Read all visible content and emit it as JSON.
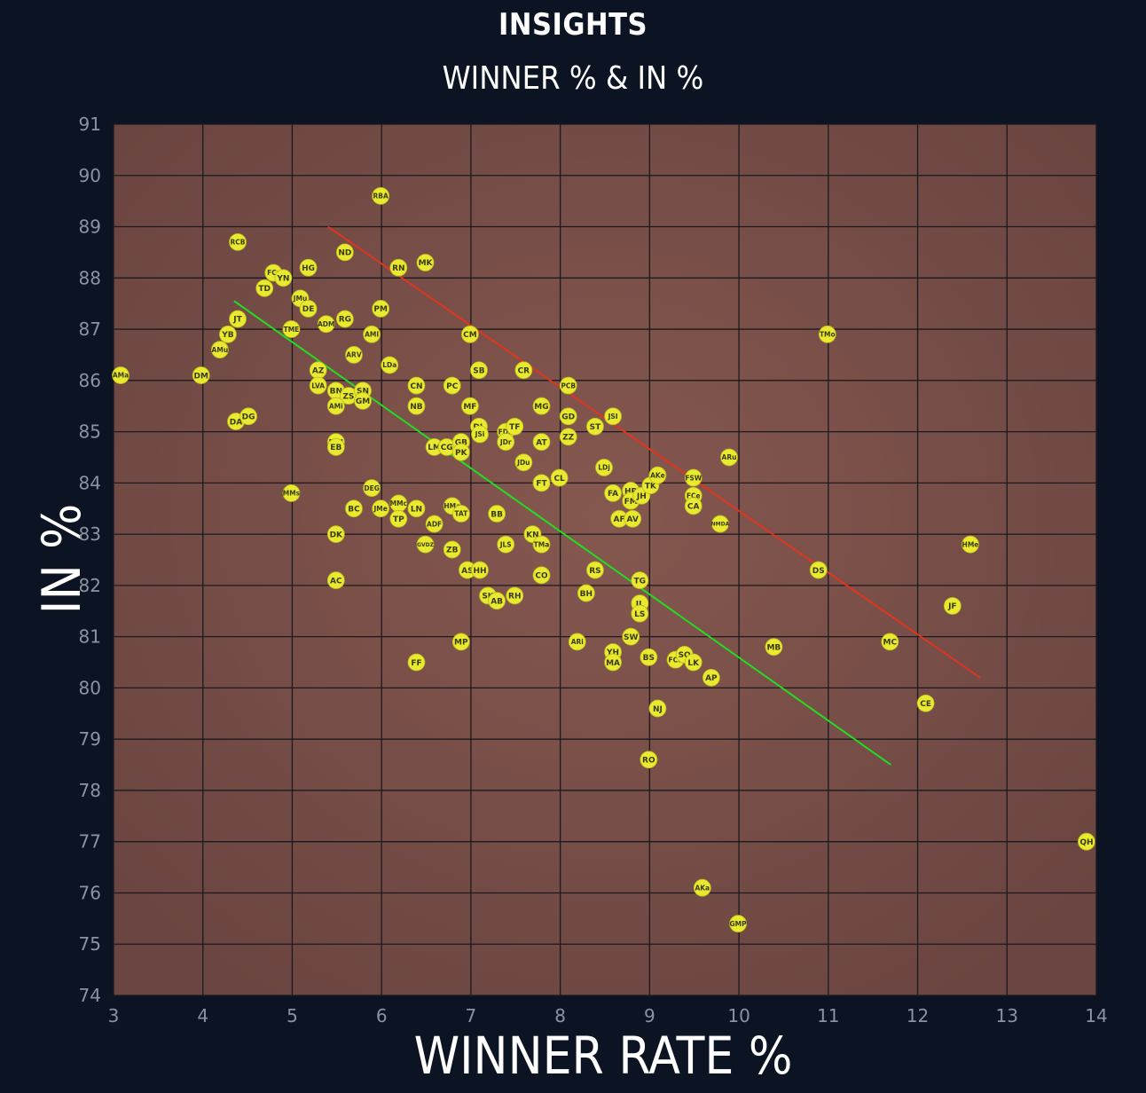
{
  "chart_data": {
    "type": "scatter",
    "title": "INSIGHTS",
    "subtitle": "WINNER % & IN %",
    "xlabel": "WINNER RATE %",
    "ylabel": "IN %",
    "xlim": [
      3,
      14
    ],
    "ylim": [
      74,
      91
    ],
    "xticks": [
      "3",
      "4",
      "5",
      "6",
      "7",
      "8",
      "9",
      "10",
      "11",
      "12",
      "13",
      "14"
    ],
    "yticks": [
      "74",
      "75",
      "76",
      "77",
      "78",
      "79",
      "80",
      "81",
      "82",
      "83",
      "84",
      "85",
      "86",
      "87",
      "88",
      "89",
      "90",
      "91"
    ],
    "grid": true,
    "colors": {
      "background": "#0c1424",
      "plot_area": "#7a4e4c",
      "grid": "#1a1a1f",
      "marker": "#e9ea2f",
      "marker_text": "#3a3a10",
      "red_line": "#e0341f",
      "green_line": "#22dd22",
      "text": "#ffffff",
      "tick_text": "#8c93a0"
    },
    "lines": [
      {
        "color": "red",
        "x": [
          5.4,
          12.7
        ],
        "y": [
          89.0,
          80.2
        ]
      },
      {
        "color": "green",
        "x": [
          4.35,
          11.7
        ],
        "y": [
          87.55,
          78.5
        ]
      }
    ],
    "points": [
      {
        "label": "AMa",
        "x": 3.08,
        "y": 86.1
      },
      {
        "label": "DM",
        "x": 3.98,
        "y": 86.1
      },
      {
        "label": "RCB",
        "x": 4.39,
        "y": 88.7
      },
      {
        "label": "JT",
        "x": 4.39,
        "y": 87.2
      },
      {
        "label": "YB",
        "x": 4.28,
        "y": 86.9
      },
      {
        "label": "AMu",
        "x": 4.19,
        "y": 86.6
      },
      {
        "label": "DA",
        "x": 4.37,
        "y": 85.2
      },
      {
        "label": "DG",
        "x": 4.51,
        "y": 85.3
      },
      {
        "label": "TD",
        "x": 4.69,
        "y": 87.8
      },
      {
        "label": "FCr",
        "x": 4.79,
        "y": 88.1
      },
      {
        "label": "YN",
        "x": 4.9,
        "y": 88.0
      },
      {
        "label": "HG",
        "x": 5.18,
        "y": 88.2
      },
      {
        "label": "JMu",
        "x": 5.09,
        "y": 87.6
      },
      {
        "label": "DE",
        "x": 5.18,
        "y": 87.4
      },
      {
        "label": "TME",
        "x": 4.99,
        "y": 87.0
      },
      {
        "label": "MMs",
        "x": 4.99,
        "y": 83.8
      },
      {
        "label": "ADM",
        "x": 5.38,
        "y": 87.1
      },
      {
        "label": "RG",
        "x": 5.59,
        "y": 87.2
      },
      {
        "label": "ND",
        "x": 5.59,
        "y": 88.5
      },
      {
        "label": "AMI",
        "x": 5.89,
        "y": 86.9
      },
      {
        "label": "PM",
        "x": 5.99,
        "y": 87.4
      },
      {
        "label": "RBA",
        "x": 5.99,
        "y": 89.6
      },
      {
        "label": "ARV",
        "x": 5.69,
        "y": 86.5
      },
      {
        "label": "AZ",
        "x": 5.29,
        "y": 86.2
      },
      {
        "label": "LVA",
        "x": 5.29,
        "y": 85.9
      },
      {
        "label": "BN",
        "x": 5.49,
        "y": 85.8
      },
      {
        "label": "ZS",
        "x": 5.63,
        "y": 85.7
      },
      {
        "label": "SN",
        "x": 5.79,
        "y": 85.8
      },
      {
        "label": "GM",
        "x": 5.79,
        "y": 85.6
      },
      {
        "label": "AMi",
        "x": 5.49,
        "y": 85.5
      },
      {
        "label": "LDa",
        "x": 6.09,
        "y": 86.3
      },
      {
        "label": "MN",
        "x": 5.49,
        "y": 84.8
      },
      {
        "label": "EB",
        "x": 5.49,
        "y": 84.7
      },
      {
        "label": "DEG",
        "x": 5.89,
        "y": 83.9
      },
      {
        "label": "BC",
        "x": 5.69,
        "y": 83.5
      },
      {
        "label": "JMe",
        "x": 5.99,
        "y": 83.5
      },
      {
        "label": "MMc",
        "x": 6.19,
        "y": 83.6
      },
      {
        "label": "LN",
        "x": 6.39,
        "y": 83.5
      },
      {
        "label": "TP",
        "x": 6.19,
        "y": 83.3
      },
      {
        "label": "DK",
        "x": 5.49,
        "y": 83.0
      },
      {
        "label": "AC",
        "x": 5.49,
        "y": 82.1
      },
      {
        "label": "RN",
        "x": 6.19,
        "y": 88.2
      },
      {
        "label": "MK",
        "x": 6.49,
        "y": 88.3
      },
      {
        "label": "CN",
        "x": 6.39,
        "y": 85.9
      },
      {
        "label": "NB",
        "x": 6.39,
        "y": 85.5
      },
      {
        "label": "PC",
        "x": 6.79,
        "y": 85.9
      },
      {
        "label": "MF",
        "x": 6.99,
        "y": 85.5
      },
      {
        "label": "CM",
        "x": 6.99,
        "y": 86.9
      },
      {
        "label": "SB",
        "x": 7.09,
        "y": 86.2
      },
      {
        "label": "LM",
        "x": 6.59,
        "y": 84.7
      },
      {
        "label": "CG",
        "x": 6.73,
        "y": 84.7
      },
      {
        "label": "GB",
        "x": 6.89,
        "y": 84.8
      },
      {
        "label": "PK",
        "x": 6.89,
        "y": 84.6
      },
      {
        "label": "DL",
        "x": 7.09,
        "y": 85.1
      },
      {
        "label": "JSi",
        "x": 7.1,
        "y": 84.95
      },
      {
        "label": "HMa",
        "x": 6.79,
        "y": 83.55
      },
      {
        "label": "TAT",
        "x": 6.89,
        "y": 83.4
      },
      {
        "label": "ADF",
        "x": 6.59,
        "y": 83.2
      },
      {
        "label": "BB",
        "x": 7.29,
        "y": 83.4
      },
      {
        "label": "GVDZ",
        "x": 6.49,
        "y": 82.8
      },
      {
        "label": "ZB",
        "x": 6.79,
        "y": 82.7
      },
      {
        "label": "AS",
        "x": 6.96,
        "y": 82.3
      },
      {
        "label": "HH",
        "x": 7.1,
        "y": 82.3
      },
      {
        "label": "JLS",
        "x": 7.39,
        "y": 82.8
      },
      {
        "label": "SK",
        "x": 7.19,
        "y": 81.8
      },
      {
        "label": "AB",
        "x": 7.29,
        "y": 81.7
      },
      {
        "label": "RH",
        "x": 7.49,
        "y": 81.8
      },
      {
        "label": "MP",
        "x": 6.89,
        "y": 80.9
      },
      {
        "label": "FF",
        "x": 6.39,
        "y": 80.5
      },
      {
        "label": "CR",
        "x": 7.59,
        "y": 86.2
      },
      {
        "label": "FDA",
        "x": 7.39,
        "y": 85.0
      },
      {
        "label": "TF",
        "x": 7.49,
        "y": 85.1
      },
      {
        "label": "JDr",
        "x": 7.39,
        "y": 84.8
      },
      {
        "label": "JDu",
        "x": 7.59,
        "y": 84.4
      },
      {
        "label": "MG",
        "x": 7.79,
        "y": 85.5
      },
      {
        "label": "AT",
        "x": 7.79,
        "y": 84.8
      },
      {
        "label": "FT",
        "x": 7.79,
        "y": 84.0
      },
      {
        "label": "CL",
        "x": 7.99,
        "y": 84.1
      },
      {
        "label": "KN",
        "x": 7.69,
        "y": 83.0
      },
      {
        "label": "TMa",
        "x": 7.79,
        "y": 82.8
      },
      {
        "label": "CO",
        "x": 7.79,
        "y": 82.2
      },
      {
        "label": "PCB",
        "x": 8.09,
        "y": 85.9
      },
      {
        "label": "GD",
        "x": 8.09,
        "y": 85.3
      },
      {
        "label": "ZZ",
        "x": 8.09,
        "y": 84.9
      },
      {
        "label": "ST",
        "x": 8.39,
        "y": 85.1
      },
      {
        "label": "JSI",
        "x": 8.59,
        "y": 85.3
      },
      {
        "label": "LDj",
        "x": 8.49,
        "y": 84.3
      },
      {
        "label": "FA",
        "x": 8.59,
        "y": 83.8
      },
      {
        "label": "HR",
        "x": 8.79,
        "y": 83.85
      },
      {
        "label": "FM",
        "x": 8.79,
        "y": 83.65
      },
      {
        "label": "JH",
        "x": 8.91,
        "y": 83.75
      },
      {
        "label": "TK",
        "x": 9.01,
        "y": 83.95
      },
      {
        "label": "AKe",
        "x": 9.09,
        "y": 84.15
      },
      {
        "label": "AF",
        "x": 8.66,
        "y": 83.3
      },
      {
        "label": "AV",
        "x": 8.81,
        "y": 83.3
      },
      {
        "label": "RS",
        "x": 8.39,
        "y": 82.3
      },
      {
        "label": "BH",
        "x": 8.29,
        "y": 81.85
      },
      {
        "label": "TG",
        "x": 8.89,
        "y": 82.1
      },
      {
        "label": "JL",
        "x": 8.89,
        "y": 81.65
      },
      {
        "label": "LS",
        "x": 8.89,
        "y": 81.45
      },
      {
        "label": "ARi",
        "x": 8.19,
        "y": 80.9
      },
      {
        "label": "SW",
        "x": 8.79,
        "y": 81.0
      },
      {
        "label": "YH",
        "x": 8.59,
        "y": 80.7
      },
      {
        "label": "MA",
        "x": 8.59,
        "y": 80.5
      },
      {
        "label": "BS",
        "x": 8.99,
        "y": 80.6
      },
      {
        "label": "FCS",
        "x": 9.29,
        "y": 80.55
      },
      {
        "label": "SO",
        "x": 9.39,
        "y": 80.65
      },
      {
        "label": "LK",
        "x": 9.49,
        "y": 80.5
      },
      {
        "label": "AP",
        "x": 9.69,
        "y": 80.2
      },
      {
        "label": "NJ",
        "x": 9.09,
        "y": 79.6
      },
      {
        "label": "RO",
        "x": 8.99,
        "y": 78.6
      },
      {
        "label": "FSW",
        "x": 9.49,
        "y": 84.1
      },
      {
        "label": "FCe",
        "x": 9.49,
        "y": 83.75
      },
      {
        "label": "CA",
        "x": 9.49,
        "y": 83.55
      },
      {
        "label": "ARu",
        "x": 9.89,
        "y": 84.5
      },
      {
        "label": "NMDA",
        "x": 9.79,
        "y": 83.2
      },
      {
        "label": "MB",
        "x": 10.39,
        "y": 80.8
      },
      {
        "label": "TMo",
        "x": 10.99,
        "y": 86.9
      },
      {
        "label": "DS",
        "x": 10.89,
        "y": 82.3
      },
      {
        "label": "MC",
        "x": 11.69,
        "y": 80.9
      },
      {
        "label": "CE",
        "x": 12.09,
        "y": 79.7
      },
      {
        "label": "JF",
        "x": 12.39,
        "y": 81.6
      },
      {
        "label": "HMe",
        "x": 12.59,
        "y": 82.8
      },
      {
        "label": "QH",
        "x": 13.89,
        "y": 77.0
      },
      {
        "label": "AKa",
        "x": 9.59,
        "y": 76.1
      },
      {
        "label": "GMP",
        "x": 9.99,
        "y": 75.4
      }
    ]
  }
}
